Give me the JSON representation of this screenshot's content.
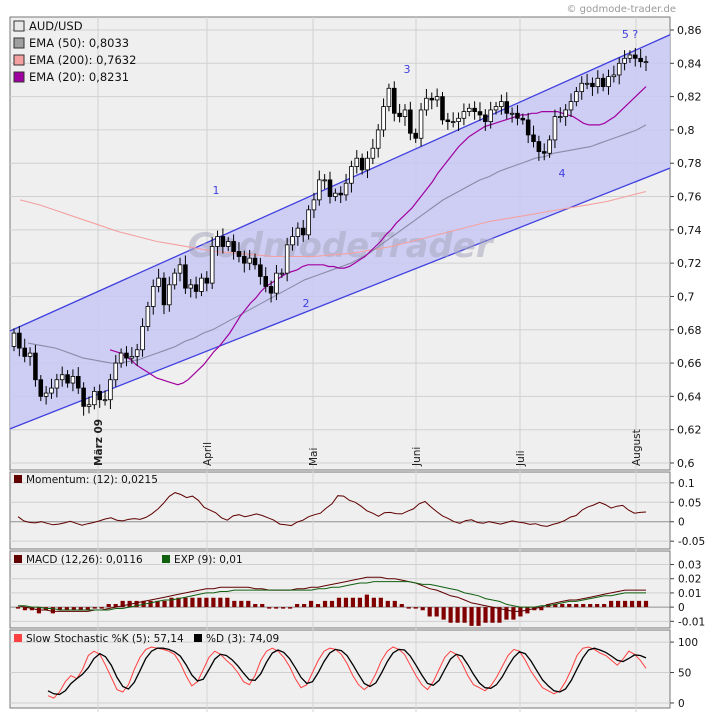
{
  "header": {
    "copyright": "© godmode-trader.de"
  },
  "watermark": "GodmodeTrader",
  "chart_data": [
    {
      "type": "candlestick",
      "title": "AUD/USD",
      "ylim": [
        0.6,
        0.86
      ],
      "y_ticks": [
        0.6,
        0.62,
        0.64,
        0.66,
        0.68,
        0.7,
        0.72,
        0.74,
        0.76,
        0.78,
        0.8,
        0.82,
        0.84,
        0.86
      ],
      "y_tick_labels": [
        "0,6",
        "0,62",
        "0,64",
        "0,66",
        "0,68",
        "0,7",
        "0,72",
        "0,74",
        "0,76",
        "0,78",
        "0,8",
        "0,82",
        "0,84",
        "0,86"
      ],
      "x_labels": [
        "März 09",
        "April",
        "Mai",
        "Juni",
        "Juli",
        "August"
      ],
      "grid": true,
      "legend": [
        {
          "label": "AUD/USD",
          "color": "#e8e8e8"
        },
        {
          "label": "EMA (50): 0,8033",
          "color": "#a0a0a0"
        },
        {
          "label": "EMA (200): 0,7632",
          "color": "#f4a0a0"
        },
        {
          "label": "EMA (20): 0,8231",
          "color": "#a000a0"
        }
      ],
      "wave_labels": [
        "1",
        "2",
        "3",
        "4",
        "5 ?"
      ],
      "channel": {
        "upper": [
          [
            0,
            0.681
          ],
          [
            130,
            0.868
          ]
        ],
        "lower": [
          [
            0,
            0.622
          ],
          [
            150,
            0.812
          ]
        ],
        "color": "#4040e0",
        "fill": "#c8c8f4"
      },
      "close": [
        0.678,
        0.669,
        0.664,
        0.666,
        0.65,
        0.64,
        0.642,
        0.645,
        0.65,
        0.653,
        0.648,
        0.652,
        0.645,
        0.634,
        0.635,
        0.643,
        0.638,
        0.638,
        0.65,
        0.66,
        0.666,
        0.663,
        0.664,
        0.668,
        0.682,
        0.694,
        0.706,
        0.711,
        0.695,
        0.707,
        0.714,
        0.719,
        0.705,
        0.707,
        0.703,
        0.711,
        0.708,
        0.73,
        0.736,
        0.73,
        0.733,
        0.727,
        0.724,
        0.72,
        0.723,
        0.719,
        0.712,
        0.706,
        0.702,
        0.714,
        0.714,
        0.731,
        0.736,
        0.741,
        0.737,
        0.752,
        0.758,
        0.77,
        0.77,
        0.76,
        0.762,
        0.761,
        0.768,
        0.778,
        0.783,
        0.776,
        0.783,
        0.789,
        0.8,
        0.814,
        0.825,
        0.81,
        0.808,
        0.812,
        0.798,
        0.795,
        0.812,
        0.819,
        0.818,
        0.82,
        0.806,
        0.805,
        0.805,
        0.807,
        0.811,
        0.813,
        0.811,
        0.809,
        0.805,
        0.812,
        0.814,
        0.817,
        0.81,
        0.81,
        0.807,
        0.806,
        0.797,
        0.793,
        0.787,
        0.786,
        0.794,
        0.808,
        0.808,
        0.812,
        0.817,
        0.823,
        0.828,
        0.828,
        0.826,
        0.831,
        0.826,
        0.832,
        0.833,
        0.84,
        0.843,
        0.845,
        0.843,
        0.841,
        0.841
      ],
      "ema20": [
        0.668,
        0.667,
        0.666,
        0.664,
        0.662,
        0.659,
        0.657,
        0.655,
        0.653,
        0.651,
        0.65,
        0.649,
        0.648,
        0.647,
        0.648,
        0.65,
        0.653,
        0.656,
        0.659,
        0.663,
        0.667,
        0.67,
        0.674,
        0.678,
        0.683,
        0.688,
        0.692,
        0.696,
        0.699,
        0.703,
        0.706,
        0.708,
        0.71,
        0.712,
        0.714,
        0.715,
        0.716,
        0.718,
        0.719,
        0.719,
        0.719,
        0.719,
        0.718,
        0.718,
        0.717,
        0.717,
        0.718,
        0.72,
        0.722,
        0.724,
        0.727,
        0.73,
        0.733,
        0.737,
        0.74,
        0.744,
        0.747,
        0.75,
        0.753,
        0.757,
        0.761,
        0.765,
        0.769,
        0.774,
        0.778,
        0.782,
        0.786,
        0.79,
        0.793,
        0.796,
        0.798,
        0.8,
        0.802,
        0.803,
        0.804,
        0.805,
        0.806,
        0.807,
        0.808,
        0.809,
        0.809,
        0.81,
        0.81,
        0.811,
        0.811,
        0.811,
        0.811,
        0.81,
        0.809,
        0.808,
        0.806,
        0.804,
        0.803,
        0.803,
        0.803,
        0.804,
        0.806,
        0.808,
        0.811,
        0.814,
        0.817,
        0.82,
        0.823,
        0.826
      ],
      "ema50": [
        0.672,
        0.671,
        0.67,
        0.669,
        0.667,
        0.665,
        0.663,
        0.662,
        0.661,
        0.66,
        0.66,
        0.661,
        0.662,
        0.664,
        0.666,
        0.668,
        0.67,
        0.673,
        0.675,
        0.678,
        0.68,
        0.683,
        0.686,
        0.689,
        0.692,
        0.695,
        0.698,
        0.701,
        0.704,
        0.707,
        0.71,
        0.712,
        0.714,
        0.716,
        0.718,
        0.72,
        0.723,
        0.726,
        0.73,
        0.734,
        0.738,
        0.742,
        0.746,
        0.75,
        0.754,
        0.758,
        0.761,
        0.764,
        0.767,
        0.77,
        0.772,
        0.775,
        0.777,
        0.779,
        0.781,
        0.783,
        0.784,
        0.786,
        0.787,
        0.788,
        0.789,
        0.79,
        0.792,
        0.794,
        0.796,
        0.798,
        0.8,
        0.803
      ],
      "ema200": [
        0.758,
        0.755,
        0.751,
        0.747,
        0.743,
        0.739,
        0.736,
        0.733,
        0.731,
        0.729,
        0.727,
        0.726,
        0.725,
        0.724,
        0.724,
        0.724,
        0.725,
        0.726,
        0.728,
        0.73,
        0.733,
        0.736,
        0.739,
        0.742,
        0.745,
        0.747,
        0.749,
        0.751,
        0.753,
        0.755,
        0.757,
        0.76,
        0.763
      ]
    },
    {
      "type": "line",
      "legend": [
        {
          "label": "Momentum: (12): 0,0215",
          "color": "#600000"
        }
      ],
      "ylim": [
        -0.065,
        0.115
      ],
      "y_ticks": [
        -0.05,
        0,
        0.05,
        0.1
      ],
      "y_tick_labels": [
        "-0.05",
        "0",
        "0.05",
        "0.1"
      ],
      "values": [
        0.013,
        0.002,
        -0.002,
        -0.003,
        0.0,
        -0.004,
        -0.008,
        -0.006,
        -0.003,
        0.001,
        -0.004,
        -0.009,
        -0.005,
        -0.002,
        0.002,
        0.007,
        0.01,
        0.004,
        0.002,
        0.006,
        0.008,
        0.006,
        0.011,
        0.02,
        0.032,
        0.047,
        0.065,
        0.075,
        0.07,
        0.062,
        0.066,
        0.055,
        0.037,
        0.03,
        0.023,
        0.01,
        0.004,
        0.015,
        0.018,
        0.013,
        0.016,
        0.02,
        0.016,
        0.01,
        0.004,
        -0.006,
        -0.008,
        -0.01,
        -0.001,
        0.004,
        0.013,
        0.018,
        0.022,
        0.035,
        0.046,
        0.067,
        0.066,
        0.055,
        0.05,
        0.04,
        0.028,
        0.022,
        0.014,
        0.023,
        0.024,
        0.021,
        0.02,
        0.027,
        0.033,
        0.046,
        0.052,
        0.038,
        0.026,
        0.015,
        0.008,
        0.0,
        -0.004,
        0.003,
        0.005,
        -0.002,
        -0.004,
        0.0,
        -0.003,
        -0.006,
        -0.002,
        0.002,
        -0.001,
        -0.003,
        -0.007,
        -0.005,
        -0.01,
        -0.012,
        -0.007,
        -0.003,
        0.003,
        0.012,
        0.016,
        0.03,
        0.038,
        0.043,
        0.05,
        0.044,
        0.035,
        0.04,
        0.042,
        0.03,
        0.022,
        0.024,
        0.025
      ]
    },
    {
      "type": "line",
      "legend": [
        {
          "label": "MACD (12,26): 0,0116",
          "color": "#600000"
        },
        {
          "label": "EXP (9): 0,01",
          "color": "#106010"
        }
      ],
      "ylim": [
        -0.014,
        0.036
      ],
      "y_ticks": [
        -0.01,
        0,
        0.01,
        0.02,
        0.03
      ],
      "y_tick_labels": [
        "-0.01",
        "0",
        "0.01",
        "0.02",
        "0.03"
      ],
      "macd": [
        0.001,
        0.0,
        -0.001,
        -0.002,
        -0.002,
        -0.003,
        -0.003,
        -0.003,
        -0.003,
        -0.003,
        -0.003,
        -0.002,
        -0.002,
        -0.001,
        0.0,
        0.001,
        0.002,
        0.003,
        0.004,
        0.005,
        0.006,
        0.007,
        0.008,
        0.009,
        0.01,
        0.011,
        0.012,
        0.013,
        0.013,
        0.014,
        0.014,
        0.014,
        0.014,
        0.014,
        0.013,
        0.013,
        0.012,
        0.012,
        0.012,
        0.012,
        0.013,
        0.013,
        0.014,
        0.014,
        0.015,
        0.016,
        0.017,
        0.018,
        0.019,
        0.02,
        0.021,
        0.021,
        0.021,
        0.02,
        0.02,
        0.019,
        0.018,
        0.017,
        0.015,
        0.013,
        0.012,
        0.01,
        0.008,
        0.007,
        0.005,
        0.003,
        0.002,
        0.001,
        0.0,
        -0.001,
        -0.002,
        -0.003,
        -0.003,
        -0.002,
        -0.001,
        0.0,
        0.002,
        0.003,
        0.004,
        0.005,
        0.005,
        0.006,
        0.007,
        0.008,
        0.009,
        0.01,
        0.011,
        0.012,
        0.012,
        0.012,
        0.012
      ],
      "signal": [
        0.001,
        0.001,
        0.0,
        0.0,
        -0.001,
        -0.001,
        -0.002,
        -0.002,
        -0.002,
        -0.002,
        -0.002,
        -0.002,
        -0.002,
        -0.002,
        -0.001,
        -0.001,
        0.0,
        0.001,
        0.002,
        0.003,
        0.004,
        0.005,
        0.005,
        0.006,
        0.007,
        0.008,
        0.009,
        0.01,
        0.01,
        0.011,
        0.011,
        0.012,
        0.012,
        0.012,
        0.012,
        0.012,
        0.012,
        0.012,
        0.012,
        0.012,
        0.012,
        0.012,
        0.012,
        0.013,
        0.013,
        0.014,
        0.014,
        0.015,
        0.016,
        0.017,
        0.017,
        0.018,
        0.018,
        0.018,
        0.018,
        0.018,
        0.018,
        0.017,
        0.016,
        0.016,
        0.015,
        0.014,
        0.013,
        0.012,
        0.01,
        0.009,
        0.008,
        0.006,
        0.005,
        0.004,
        0.002,
        0.001,
        0.0,
        0.0,
        0.0,
        0.001,
        0.001,
        0.002,
        0.003,
        0.004,
        0.004,
        0.005,
        0.006,
        0.007,
        0.008,
        0.008,
        0.009,
        0.01,
        0.01,
        0.01,
        0.01
      ]
    },
    {
      "type": "line",
      "legend": [
        {
          "label": "Slow Stochastic %K (5): 57,14",
          "color": "#ff4040"
        },
        {
          "label": "%D (3): 74,09",
          "color": "#000000"
        }
      ],
      "ylim": [
        -5,
        110
      ],
      "y_ticks": [
        0,
        50,
        100
      ],
      "y_tick_labels": [
        "0",
        "50",
        "100"
      ],
      "k": [
        12,
        8,
        18,
        35,
        45,
        40,
        55,
        78,
        85,
        80,
        62,
        42,
        22,
        18,
        30,
        55,
        75,
        88,
        92,
        90,
        88,
        85,
        80,
        65,
        45,
        28,
        35,
        55,
        75,
        85,
        80,
        70,
        62,
        50,
        35,
        30,
        45,
        70,
        85,
        90,
        85,
        75,
        60,
        40,
        25,
        30,
        50,
        70,
        85,
        90,
        88,
        80,
        65,
        45,
        30,
        22,
        30,
        48,
        70,
        85,
        92,
        88,
        80,
        62,
        45,
        30,
        22,
        35,
        55,
        75,
        85,
        80,
        65,
        45,
        30,
        25,
        20,
        28,
        42,
        60,
        78,
        88,
        85,
        70,
        52,
        38,
        25,
        20,
        15,
        20,
        35,
        55,
        78,
        90,
        92,
        88,
        82,
        78,
        70,
        62,
        72,
        85,
        80,
        70,
        57
      ],
      "d": [
        20,
        15,
        14,
        20,
        32,
        40,
        47,
        58,
        73,
        81,
        76,
        62,
        42,
        27,
        23,
        34,
        53,
        73,
        85,
        90,
        90,
        88,
        84,
        77,
        63,
        46,
        36,
        39,
        55,
        72,
        80,
        78,
        71,
        61,
        49,
        38,
        37,
        48,
        67,
        82,
        87,
        83,
        73,
        58,
        42,
        32,
        35,
        50,
        68,
        82,
        88,
        86,
        78,
        63,
        47,
        32,
        27,
        33,
        49,
        68,
        82,
        88,
        87,
        77,
        62,
        46,
        32,
        29,
        37,
        55,
        72,
        80,
        77,
        63,
        47,
        33,
        25,
        24,
        30,
        43,
        60,
        75,
        84,
        81,
        69,
        53,
        38,
        28,
        20,
        18,
        23,
        37,
        56,
        74,
        87,
        90,
        87,
        83,
        77,
        70,
        68,
        73,
        79,
        78,
        74
      ]
    }
  ]
}
